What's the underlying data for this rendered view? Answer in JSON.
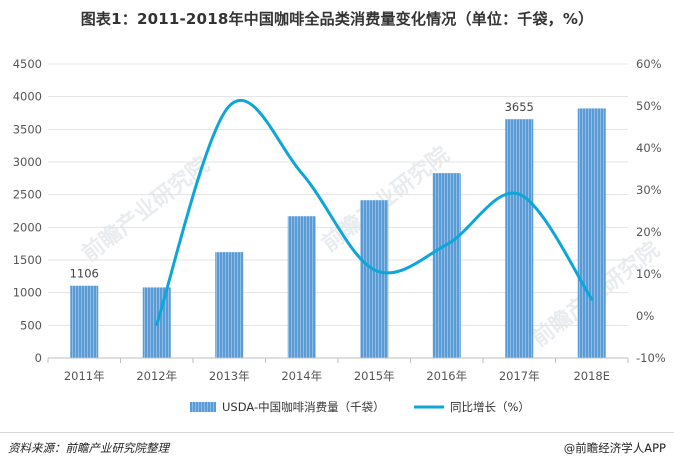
{
  "title": "图表1：2011-2018年中国咖啡全品类消费量变化情况（单位：千袋，%）",
  "footer": {
    "source": "资料来源：前瞻产业研究院整理",
    "brand": "@前瞻经济学人APP"
  },
  "watermark": "前瞻产业研究院",
  "colors": {
    "bar": "#5b9bd5",
    "line": "#0ea5d8",
    "grid": "#e3e3e3",
    "axis": "#bfbfbf"
  },
  "chart_data": {
    "type": "bar",
    "categories": [
      "2011年",
      "2012年",
      "2013年",
      "2014年",
      "2015年",
      "2016年",
      "2017年",
      "2018E"
    ],
    "series": [
      {
        "name": "USDA-中国咖啡消费量（千袋）",
        "type": "bar",
        "axis": "left",
        "values": [
          1106,
          1080,
          1620,
          2170,
          2415,
          2830,
          3655,
          3820
        ]
      },
      {
        "name": "同比增长（%）",
        "type": "line",
        "axis": "right",
        "values": [
          null,
          -2.0,
          50.0,
          34.0,
          11.0,
          17.0,
          29.0,
          4.0
        ]
      }
    ],
    "data_labels": [
      {
        "index": 0,
        "text": "1106"
      },
      {
        "index": 6,
        "text": "3655"
      }
    ],
    "y_left": {
      "min": 0,
      "max": 4500,
      "step": 500,
      "ticks": [
        "0",
        "500",
        "1000",
        "1500",
        "2000",
        "2500",
        "3000",
        "3500",
        "4000",
        "4500"
      ]
    },
    "y_right": {
      "min": -10,
      "max": 60,
      "step": 10,
      "ticks": [
        "-10%",
        "0%",
        "10%",
        "20%",
        "30%",
        "40%",
        "50%",
        "60%"
      ]
    },
    "grid": true,
    "legend_position": "bottom"
  }
}
